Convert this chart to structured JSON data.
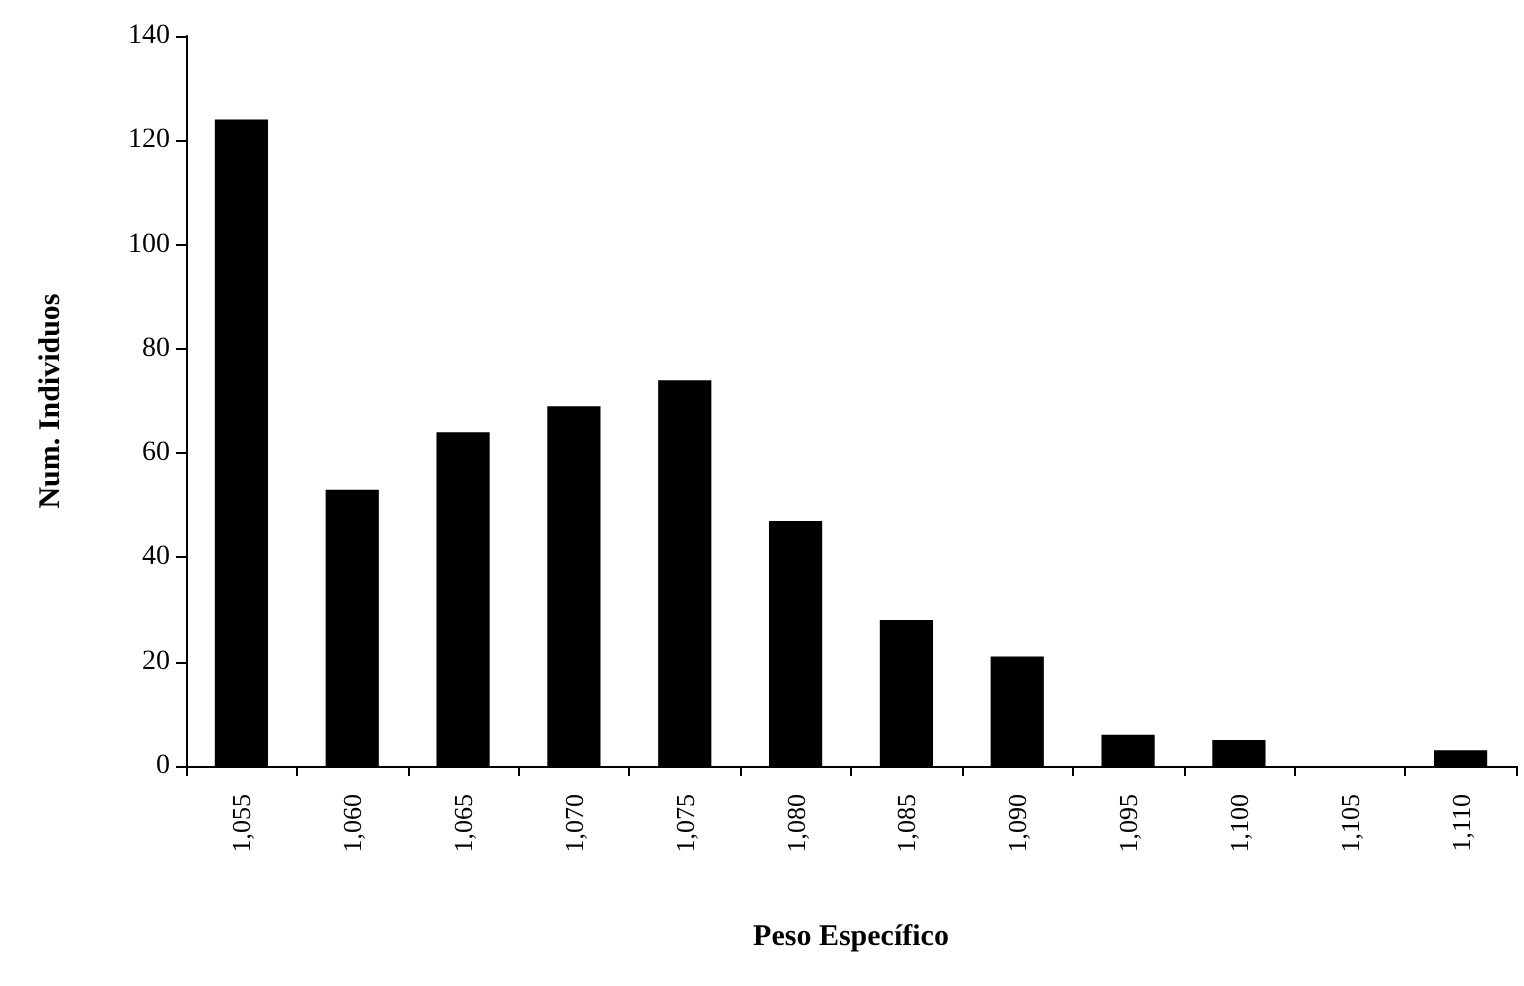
{
  "chart_data": {
    "type": "bar",
    "xlabel": "Peso Específico",
    "ylabel": "Num. Individuos",
    "categories": [
      "1,055",
      "1,060",
      "1,065",
      "1,070",
      "1,075",
      "1,080",
      "1,085",
      "1,090",
      "1,095",
      "1,100",
      "1,105",
      "1,110"
    ],
    "values": [
      124,
      53,
      64,
      69,
      74,
      47,
      28,
      21,
      6,
      5,
      0,
      3
    ],
    "color": "#000000",
    "ylim": [
      0,
      140
    ],
    "yticks": [
      0,
      20,
      40,
      60,
      80,
      100,
      120,
      140
    ],
    "grid": false
  }
}
